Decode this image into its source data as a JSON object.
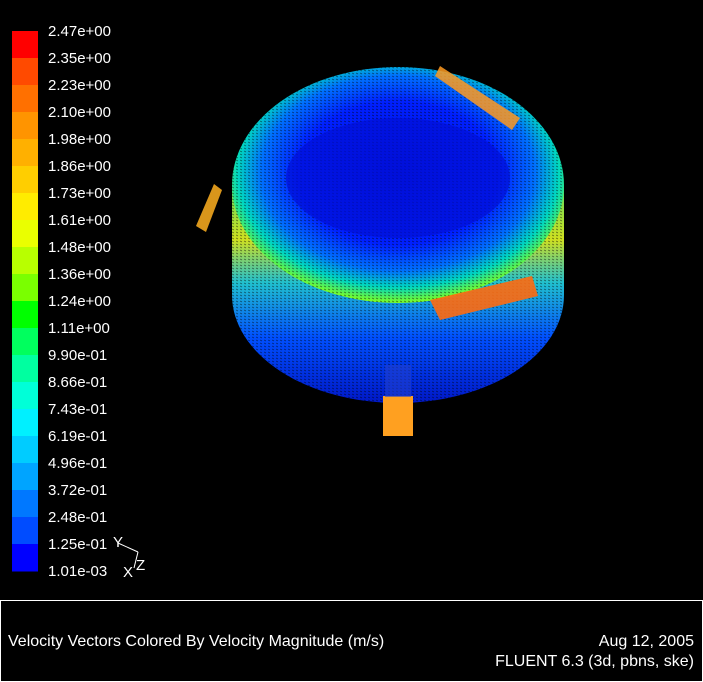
{
  "colorbar": {
    "labels": [
      "2.47e+00",
      "2.35e+00",
      "2.23e+00",
      "2.10e+00",
      "1.98e+00",
      "1.86e+00",
      "1.73e+00",
      "1.61e+00",
      "1.48e+00",
      "1.36e+00",
      "1.24e+00",
      "1.11e+00",
      "9.90e-01",
      "8.66e-01",
      "7.43e-01",
      "6.19e-01",
      "4.96e-01",
      "3.72e-01",
      "2.48e-01",
      "1.25e-01",
      "1.01e-03"
    ],
    "colors": [
      "#ff0000",
      "#ff4a00",
      "#ff7000",
      "#ff9400",
      "#ffb000",
      "#ffce00",
      "#ffec00",
      "#eaff00",
      "#b8ff00",
      "#7aff00",
      "#00ff00",
      "#00ff5e",
      "#00ffa0",
      "#00ffd8",
      "#00f0ff",
      "#00ccff",
      "#00a4ff",
      "#0078ff",
      "#004cff",
      "#0000ff"
    ]
  },
  "axes": {
    "y": "Y",
    "z": "Z",
    "x": "X"
  },
  "caption": {
    "title": "Velocity Vectors Colored By Velocity Magnitude (m/s)",
    "date": "Aug 12, 2005",
    "software": "FLUENT 6.3 (3d, pbns, ske)"
  }
}
